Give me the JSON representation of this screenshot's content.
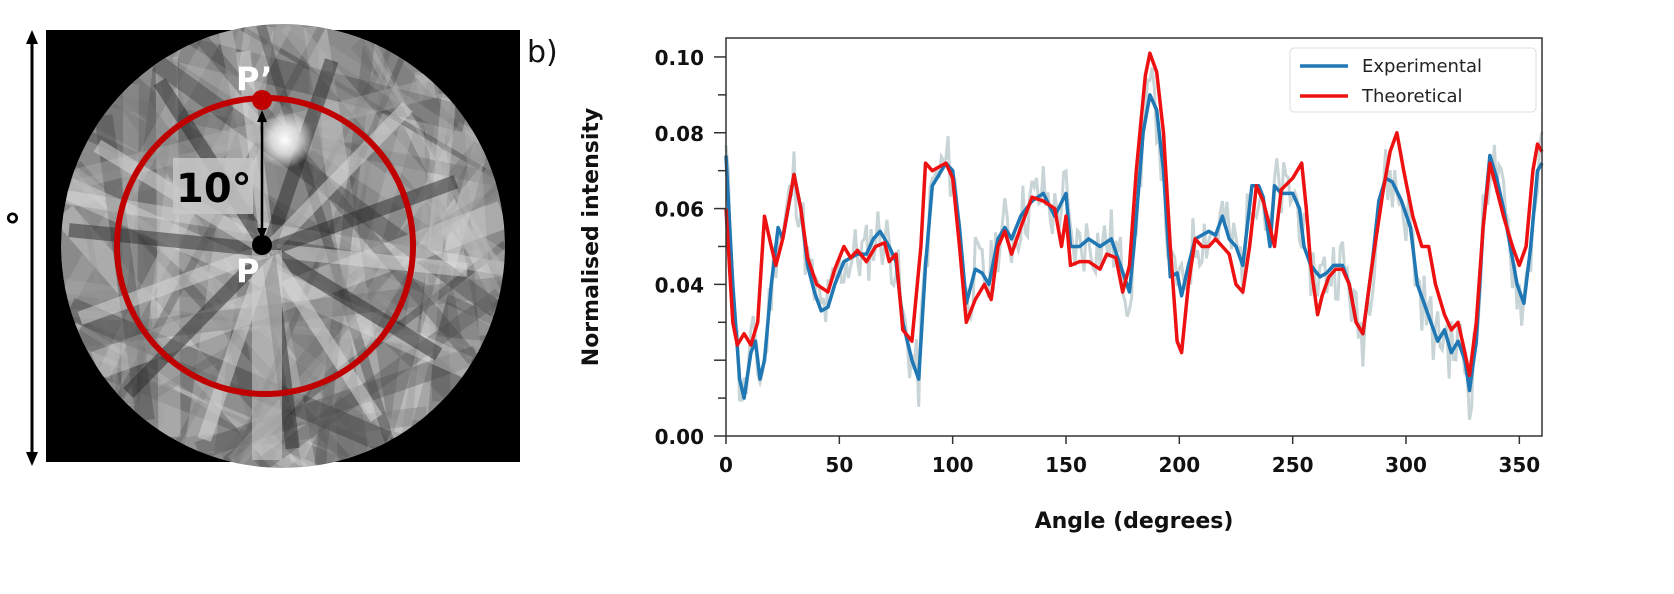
{
  "figure_a": {
    "point_p_label": "P",
    "point_p_prime_label": "P’",
    "angle_label": "10°",
    "side_label": "°",
    "circle_color": "#c00000"
  },
  "panel_label": "b)",
  "chart_data": {
    "type": "line",
    "xlabel": "Angle (degrees)",
    "ylabel": "Normalised intensity",
    "xlim": [
      0,
      360
    ],
    "ylim": [
      0,
      0.105
    ],
    "x_ticks": [
      "0",
      "50",
      "100",
      "150",
      "200",
      "250",
      "300",
      "350"
    ],
    "y_ticks": [
      "0.00",
      "0.04",
      "0.06",
      "0.08",
      "0.10"
    ],
    "grid": false,
    "legend_position": "top-right",
    "series": [
      {
        "name": "Experimental",
        "color": "#1f77b4",
        "x": [
          0,
          3,
          6,
          8,
          11,
          13,
          15,
          17,
          20,
          23,
          25,
          28,
          30,
          33,
          36,
          39,
          42,
          45,
          48,
          52,
          55,
          58,
          62,
          65,
          68,
          72,
          75,
          78,
          82,
          85,
          88,
          91,
          94,
          97,
          100,
          103,
          106,
          110,
          113,
          116,
          120,
          123,
          126,
          130,
          135,
          140,
          145,
          150,
          152,
          156,
          160,
          165,
          170,
          174,
          178,
          180,
          184,
          187,
          190,
          193,
          196,
          199,
          201,
          204,
          207,
          210,
          213,
          216,
          219,
          222,
          225,
          228,
          232,
          235,
          237,
          240,
          242,
          245,
          250,
          253,
          255,
          258,
          262,
          265,
          268,
          272,
          275,
          278,
          281,
          285,
          288,
          291,
          294,
          298,
          302,
          305,
          308,
          311,
          314,
          317,
          320,
          323,
          326,
          328,
          331,
          334,
          337,
          340,
          343,
          346,
          349,
          352,
          355,
          358,
          360
        ],
        "y": [
          0.074,
          0.04,
          0.015,
          0.01,
          0.022,
          0.025,
          0.015,
          0.02,
          0.04,
          0.055,
          0.052,
          0.062,
          0.069,
          0.06,
          0.045,
          0.038,
          0.033,
          0.034,
          0.04,
          0.046,
          0.047,
          0.048,
          0.048,
          0.052,
          0.054,
          0.05,
          0.046,
          0.03,
          0.02,
          0.015,
          0.045,
          0.066,
          0.069,
          0.072,
          0.07,
          0.055,
          0.035,
          0.044,
          0.043,
          0.04,
          0.052,
          0.055,
          0.052,
          0.058,
          0.062,
          0.064,
          0.058,
          0.064,
          0.05,
          0.05,
          0.052,
          0.05,
          0.052,
          0.045,
          0.038,
          0.05,
          0.08,
          0.09,
          0.086,
          0.07,
          0.042,
          0.043,
          0.037,
          0.045,
          0.052,
          0.053,
          0.054,
          0.053,
          0.058,
          0.052,
          0.05,
          0.045,
          0.066,
          0.066,
          0.063,
          0.05,
          0.066,
          0.064,
          0.064,
          0.06,
          0.05,
          0.045,
          0.042,
          0.043,
          0.045,
          0.045,
          0.04,
          0.03,
          0.027,
          0.045,
          0.062,
          0.068,
          0.067,
          0.062,
          0.055,
          0.04,
          0.035,
          0.03,
          0.025,
          0.028,
          0.022,
          0.025,
          0.02,
          0.012,
          0.025,
          0.055,
          0.074,
          0.068,
          0.06,
          0.05,
          0.04,
          0.035,
          0.05,
          0.07,
          0.072
        ]
      },
      {
        "name": "Theoretical",
        "color": "#ee1111",
        "x": [
          0,
          3,
          5,
          8,
          11,
          14,
          17,
          20,
          22,
          25,
          30,
          33,
          36,
          40,
          45,
          48,
          52,
          55,
          58,
          62,
          66,
          70,
          72,
          75,
          78,
          82,
          86,
          88,
          91,
          94,
          97,
          100,
          103,
          106,
          110,
          114,
          117,
          120,
          123,
          126,
          130,
          135,
          140,
          145,
          148,
          150,
          152,
          156,
          160,
          165,
          168,
          172,
          175,
          178,
          181,
          185,
          187,
          190,
          193,
          196,
          199,
          201,
          204,
          207,
          210,
          213,
          216,
          219,
          222,
          225,
          228,
          231,
          234,
          237,
          240,
          242,
          245,
          250,
          254,
          256,
          258,
          261,
          263,
          266,
          269,
          272,
          275,
          278,
          281,
          285,
          290,
          293,
          296,
          299,
          303,
          307,
          310,
          313,
          317,
          320,
          323,
          326,
          328,
          331,
          334,
          337,
          340,
          343,
          347,
          350,
          353,
          356,
          358,
          360
        ],
        "y": [
          0.06,
          0.03,
          0.024,
          0.027,
          0.024,
          0.03,
          0.058,
          0.05,
          0.045,
          0.052,
          0.069,
          0.06,
          0.047,
          0.04,
          0.038,
          0.044,
          0.05,
          0.047,
          0.049,
          0.046,
          0.05,
          0.051,
          0.046,
          0.048,
          0.028,
          0.025,
          0.05,
          0.072,
          0.07,
          0.071,
          0.072,
          0.068,
          0.05,
          0.03,
          0.036,
          0.04,
          0.036,
          0.05,
          0.054,
          0.048,
          0.055,
          0.063,
          0.062,
          0.06,
          0.05,
          0.058,
          0.045,
          0.046,
          0.046,
          0.044,
          0.048,
          0.047,
          0.038,
          0.045,
          0.07,
          0.095,
          0.101,
          0.096,
          0.08,
          0.05,
          0.025,
          0.022,
          0.04,
          0.052,
          0.05,
          0.05,
          0.052,
          0.05,
          0.048,
          0.04,
          0.038,
          0.05,
          0.066,
          0.062,
          0.055,
          0.05,
          0.065,
          0.068,
          0.072,
          0.06,
          0.045,
          0.032,
          0.037,
          0.042,
          0.044,
          0.044,
          0.04,
          0.03,
          0.027,
          0.045,
          0.065,
          0.075,
          0.08,
          0.07,
          0.058,
          0.05,
          0.05,
          0.04,
          0.032,
          0.028,
          0.03,
          0.022,
          0.016,
          0.03,
          0.055,
          0.072,
          0.065,
          0.058,
          0.05,
          0.045,
          0.05,
          0.07,
          0.077,
          0.075
        ]
      }
    ],
    "raw_trace_color": "#c8d4d6"
  }
}
